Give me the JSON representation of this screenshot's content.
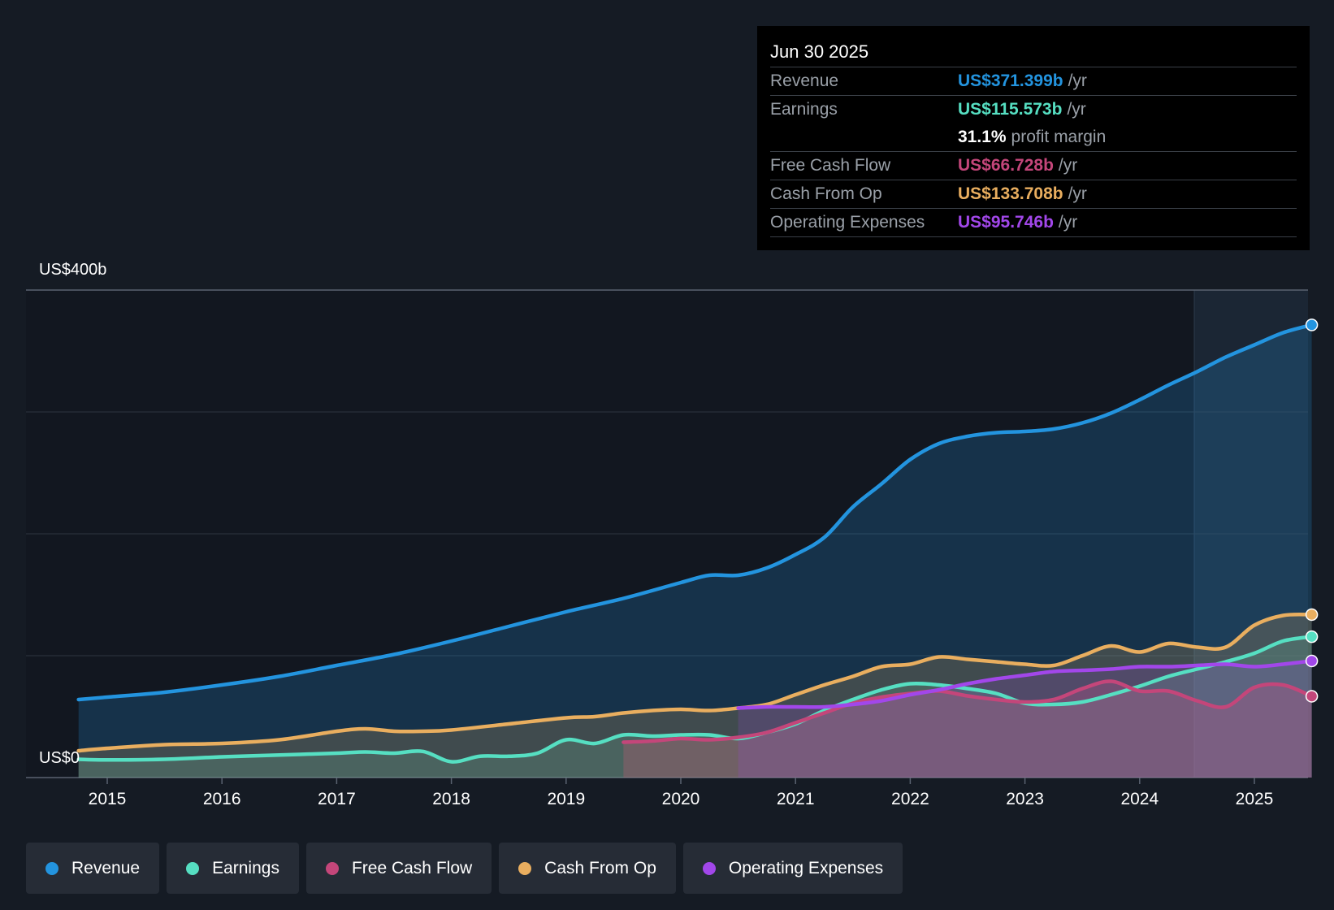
{
  "chart_data": {
    "type": "area",
    "yaxis": {
      "top_label": "US$400b",
      "bottom_label": "US$0",
      "ylim": [
        0,
        400
      ]
    },
    "x_ticks": [
      "2015",
      "2016",
      "2017",
      "2018",
      "2019",
      "2020",
      "2021",
      "2022",
      "2023",
      "2024",
      "2025"
    ],
    "grid": true,
    "series": [
      {
        "name": "Revenue",
        "color": "#2394df",
        "points": [
          [
            2014.75,
            64
          ],
          [
            2015.0,
            66
          ],
          [
            2015.5,
            70
          ],
          [
            2016.0,
            76
          ],
          [
            2016.5,
            83
          ],
          [
            2017.0,
            92
          ],
          [
            2017.5,
            101
          ],
          [
            2018.0,
            112
          ],
          [
            2018.5,
            124
          ],
          [
            2019.0,
            136
          ],
          [
            2019.5,
            147
          ],
          [
            2020.0,
            160
          ],
          [
            2020.25,
            166
          ],
          [
            2020.5,
            166
          ],
          [
            2020.75,
            172
          ],
          [
            2021.0,
            183
          ],
          [
            2021.25,
            197
          ],
          [
            2021.5,
            222
          ],
          [
            2021.75,
            241
          ],
          [
            2022.0,
            261
          ],
          [
            2022.25,
            274
          ],
          [
            2022.5,
            280
          ],
          [
            2022.75,
            283
          ],
          [
            2023.0,
            284
          ],
          [
            2023.25,
            286
          ],
          [
            2023.5,
            291
          ],
          [
            2023.75,
            299
          ],
          [
            2024.0,
            310
          ],
          [
            2024.25,
            322
          ],
          [
            2024.5,
            333
          ],
          [
            2024.75,
            345
          ],
          [
            2025.0,
            355
          ],
          [
            2025.25,
            365
          ],
          [
            2025.5,
            371.4
          ]
        ]
      },
      {
        "name": "Earnings",
        "color": "#56dfc2",
        "points": [
          [
            2014.75,
            15
          ],
          [
            2015.0,
            14.5
          ],
          [
            2015.5,
            15
          ],
          [
            2016.0,
            17
          ],
          [
            2016.5,
            18.5
          ],
          [
            2017.0,
            20
          ],
          [
            2017.25,
            21
          ],
          [
            2017.5,
            20
          ],
          [
            2017.75,
            21.5
          ],
          [
            2018.0,
            13
          ],
          [
            2018.25,
            17.5
          ],
          [
            2018.5,
            17.5
          ],
          [
            2018.75,
            20
          ],
          [
            2019.0,
            31
          ],
          [
            2019.25,
            28
          ],
          [
            2019.5,
            35
          ],
          [
            2019.75,
            34
          ],
          [
            2020.0,
            35
          ],
          [
            2020.25,
            35
          ],
          [
            2020.5,
            32
          ],
          [
            2020.75,
            37
          ],
          [
            2021.0,
            44
          ],
          [
            2021.25,
            55
          ],
          [
            2021.5,
            64
          ],
          [
            2021.75,
            72
          ],
          [
            2022.0,
            77
          ],
          [
            2022.25,
            76
          ],
          [
            2022.5,
            73
          ],
          [
            2022.75,
            69
          ],
          [
            2023.0,
            61
          ],
          [
            2023.25,
            60
          ],
          [
            2023.5,
            62
          ],
          [
            2023.75,
            68
          ],
          [
            2024.0,
            75
          ],
          [
            2024.25,
            83
          ],
          [
            2024.5,
            89
          ],
          [
            2024.75,
            95
          ],
          [
            2025.0,
            102
          ],
          [
            2025.25,
            112
          ],
          [
            2025.5,
            115.6
          ]
        ]
      },
      {
        "name": "Free Cash Flow",
        "color": "#c4467a",
        "points": [
          [
            2019.5,
            29
          ],
          [
            2019.75,
            30
          ],
          [
            2020.0,
            32
          ],
          [
            2020.25,
            31
          ],
          [
            2020.5,
            33
          ],
          [
            2020.75,
            37
          ],
          [
            2021.0,
            45
          ],
          [
            2021.25,
            53
          ],
          [
            2021.5,
            61
          ],
          [
            2021.75,
            66
          ],
          [
            2022.0,
            69
          ],
          [
            2022.25,
            71
          ],
          [
            2022.5,
            67
          ],
          [
            2022.75,
            64
          ],
          [
            2023.0,
            62
          ],
          [
            2023.25,
            64
          ],
          [
            2023.5,
            73
          ],
          [
            2023.75,
            79
          ],
          [
            2024.0,
            71
          ],
          [
            2024.25,
            71
          ],
          [
            2024.5,
            63
          ],
          [
            2024.75,
            58
          ],
          [
            2025.0,
            74
          ],
          [
            2025.25,
            76
          ],
          [
            2025.5,
            66.7
          ]
        ]
      },
      {
        "name": "Cash From Op",
        "color": "#e9ae5f",
        "points": [
          [
            2014.75,
            22
          ],
          [
            2015.0,
            24
          ],
          [
            2015.5,
            27
          ],
          [
            2016.0,
            28
          ],
          [
            2016.5,
            31
          ],
          [
            2017.0,
            38
          ],
          [
            2017.25,
            40
          ],
          [
            2017.5,
            38
          ],
          [
            2017.75,
            38
          ],
          [
            2018.0,
            39
          ],
          [
            2018.5,
            44
          ],
          [
            2019.0,
            49
          ],
          [
            2019.25,
            50
          ],
          [
            2019.5,
            53
          ],
          [
            2019.75,
            55
          ],
          [
            2020.0,
            56
          ],
          [
            2020.25,
            55
          ],
          [
            2020.5,
            57
          ],
          [
            2020.75,
            60
          ],
          [
            2021.0,
            68
          ],
          [
            2021.25,
            76
          ],
          [
            2021.5,
            83
          ],
          [
            2021.75,
            91
          ],
          [
            2022.0,
            93
          ],
          [
            2022.25,
            99
          ],
          [
            2022.5,
            97
          ],
          [
            2022.75,
            95
          ],
          [
            2023.0,
            93
          ],
          [
            2023.25,
            92
          ],
          [
            2023.5,
            100
          ],
          [
            2023.75,
            108
          ],
          [
            2024.0,
            103
          ],
          [
            2024.25,
            110
          ],
          [
            2024.5,
            107
          ],
          [
            2024.75,
            107
          ],
          [
            2025.0,
            125
          ],
          [
            2025.25,
            133
          ],
          [
            2025.5,
            133.7
          ]
        ]
      },
      {
        "name": "Operating Expenses",
        "color": "#a247ea",
        "points": [
          [
            2020.5,
            57
          ],
          [
            2020.75,
            58
          ],
          [
            2021.0,
            58
          ],
          [
            2021.25,
            58
          ],
          [
            2021.5,
            60
          ],
          [
            2021.75,
            63
          ],
          [
            2022.0,
            68
          ],
          [
            2022.25,
            72
          ],
          [
            2022.5,
            77
          ],
          [
            2022.75,
            81
          ],
          [
            2023.0,
            84
          ],
          [
            2023.25,
            87
          ],
          [
            2023.5,
            88
          ],
          [
            2023.75,
            89
          ],
          [
            2024.0,
            91
          ],
          [
            2024.25,
            91
          ],
          [
            2024.5,
            92
          ],
          [
            2024.75,
            93
          ],
          [
            2025.0,
            91
          ],
          [
            2025.25,
            93
          ],
          [
            2025.5,
            95.7
          ]
        ]
      }
    ]
  },
  "tooltip": {
    "date": "Jun 30 2025",
    "rows": [
      {
        "label": "Revenue",
        "value": "US$371.399b",
        "unit": "/yr",
        "color": "#2394df"
      },
      {
        "label": "Earnings",
        "value": "US$115.573b",
        "unit": "/yr",
        "color": "#56dfc2"
      },
      {
        "label": "",
        "value": "31.1%",
        "unit": "profit margin",
        "color": "#ffffff"
      },
      {
        "label": "Free Cash Flow",
        "value": "US$66.728b",
        "unit": "/yr",
        "color": "#c4467a"
      },
      {
        "label": "Cash From Op",
        "value": "US$133.708b",
        "unit": "/yr",
        "color": "#e9ae5f"
      },
      {
        "label": "Operating Expenses",
        "value": "US$95.746b",
        "unit": "/yr",
        "color": "#a247ea"
      }
    ]
  },
  "legend": [
    {
      "label": "Revenue",
      "color": "#2394df"
    },
    {
      "label": "Earnings",
      "color": "#56dfc2"
    },
    {
      "label": "Free Cash Flow",
      "color": "#c4467a"
    },
    {
      "label": "Cash From Op",
      "color": "#e9ae5f"
    },
    {
      "label": "Operating Expenses",
      "color": "#a247ea"
    }
  ]
}
